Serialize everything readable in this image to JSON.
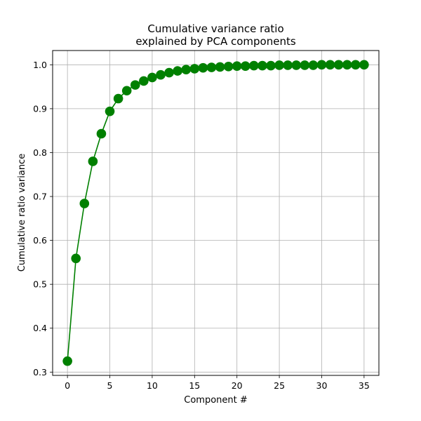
{
  "chart_data": {
    "type": "line",
    "title_lines": [
      "Cumulative variance ratio",
      "explained by PCA components"
    ],
    "xlabel": "Component #",
    "ylabel": "Cumulative ratio variance",
    "xlim": [
      -1.75,
      36.75
    ],
    "ylim": [
      0.2925,
      1.0325
    ],
    "xticks": [
      0,
      5,
      10,
      15,
      20,
      25,
      30,
      35
    ],
    "yticks": [
      0.3,
      0.4,
      0.5,
      0.6,
      0.7,
      0.8,
      0.9,
      1.0
    ],
    "xtick_labels": [
      "0",
      "5",
      "10",
      "15",
      "20",
      "25",
      "30",
      "35"
    ],
    "ytick_labels": [
      "0.3",
      "0.4",
      "0.5",
      "0.6",
      "0.7",
      "0.8",
      "0.9",
      "1.0"
    ],
    "grid": true,
    "color": "#008000",
    "marker": "circle",
    "series": [
      {
        "x": [
          0,
          1,
          2,
          3,
          4,
          5,
          6,
          7,
          8,
          9,
          10,
          11,
          12,
          13,
          14,
          15,
          16,
          17,
          18,
          19,
          20,
          21,
          22,
          23,
          24,
          25,
          26,
          27,
          28,
          29,
          30,
          31,
          32,
          33,
          34,
          35
        ],
        "values": [
          0.325,
          0.559,
          0.684,
          0.78,
          0.843,
          0.894,
          0.923,
          0.941,
          0.954,
          0.963,
          0.971,
          0.977,
          0.982,
          0.986,
          0.989,
          0.991,
          0.993,
          0.994,
          0.995,
          0.996,
          0.997,
          0.997,
          0.998,
          0.998,
          0.998,
          0.999,
          0.999,
          0.999,
          0.999,
          0.999,
          1.0,
          1.0,
          1.0,
          1.0,
          1.0,
          1.0
        ]
      }
    ]
  }
}
